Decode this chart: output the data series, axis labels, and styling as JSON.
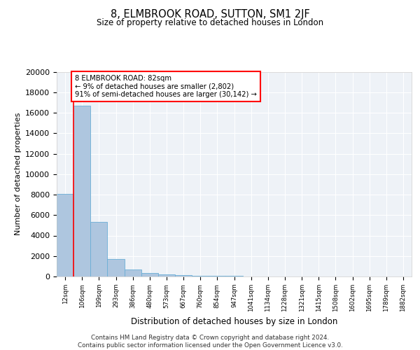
{
  "title1": "8, ELMBROOK ROAD, SUTTON, SM1 2JF",
  "title2": "Size of property relative to detached houses in London",
  "xlabel": "Distribution of detached houses by size in London",
  "ylabel": "Number of detached properties",
  "bin_labels": [
    "12sqm",
    "106sqm",
    "199sqm",
    "293sqm",
    "386sqm",
    "480sqm",
    "573sqm",
    "667sqm",
    "760sqm",
    "854sqm",
    "947sqm",
    "1041sqm",
    "1134sqm",
    "1228sqm",
    "1321sqm",
    "1415sqm",
    "1508sqm",
    "1602sqm",
    "1695sqm",
    "1789sqm",
    "1882sqm"
  ],
  "bar_heights": [
    8100,
    16700,
    5300,
    1700,
    650,
    350,
    200,
    120,
    80,
    55,
    40,
    30,
    22,
    18,
    14,
    11,
    9,
    7,
    5,
    4,
    3
  ],
  "bar_color": "#aec6df",
  "bar_edge_color": "#6aaed6",
  "annotation_text": "8 ELMBROOK ROAD: 82sqm\n← 9% of detached houses are smaller (2,802)\n91% of semi-detached houses are larger (30,142) →",
  "red_line_bin": 1,
  "ylim": [
    0,
    20000
  ],
  "yticks": [
    0,
    2000,
    4000,
    6000,
    8000,
    10000,
    12000,
    14000,
    16000,
    18000,
    20000
  ],
  "footer": "Contains HM Land Registry data © Crown copyright and database right 2024.\nContains public sector information licensed under the Open Government Licence v3.0.",
  "background_color": "#eef2f7"
}
